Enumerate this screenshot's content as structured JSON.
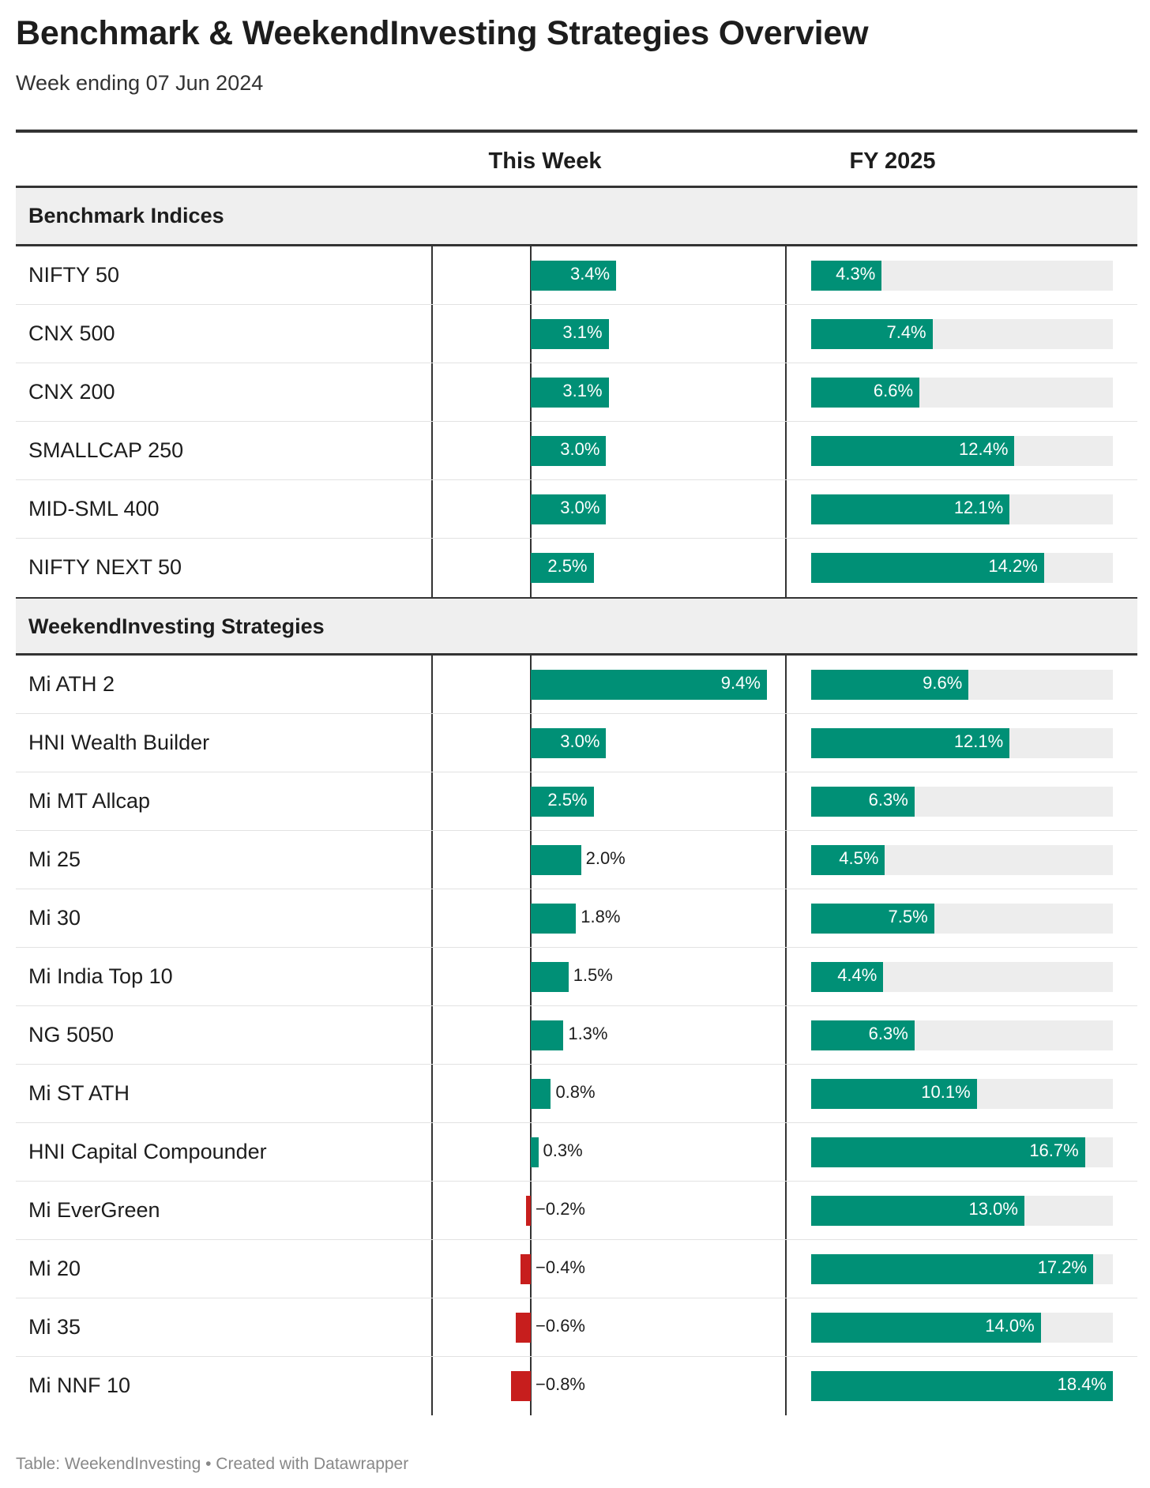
{
  "title": "Benchmark & WeekendInvesting Strategies Overview",
  "subtitle": "Week ending 07 Jun 2024",
  "footer": "Table: WeekendInvesting • Created with Datawrapper",
  "colors": {
    "positive": "#009076",
    "negative": "#c71e1d",
    "track": "#ededed",
    "group_bg": "#efefef"
  },
  "chart_data": {
    "type": "table",
    "columns": [
      "",
      "This Week",
      "FY 2025"
    ],
    "groups": [
      {
        "name": "Benchmark Indices",
        "rows": [
          {
            "name": "NIFTY 50",
            "week": 3.4,
            "week_label": "3.4%",
            "fy": 4.3,
            "fy_label": "4.3%"
          },
          {
            "name": "CNX 500",
            "week": 3.1,
            "week_label": "3.1%",
            "fy": 7.4,
            "fy_label": "7.4%"
          },
          {
            "name": "CNX 200",
            "week": 3.1,
            "week_label": "3.1%",
            "fy": 6.6,
            "fy_label": "6.6%"
          },
          {
            "name": "SMALLCAP 250",
            "week": 3.0,
            "week_label": "3.0%",
            "fy": 12.4,
            "fy_label": "12.4%"
          },
          {
            "name": "MID-SML 400",
            "week": 3.0,
            "week_label": "3.0%",
            "fy": 12.1,
            "fy_label": "12.1%"
          },
          {
            "name": "NIFTY NEXT 50",
            "week": 2.5,
            "week_label": "2.5%",
            "fy": 14.2,
            "fy_label": "14.2%"
          }
        ]
      },
      {
        "name": "WeekendInvesting Strategies",
        "rows": [
          {
            "name": "Mi ATH 2",
            "week": 9.4,
            "week_label": "9.4%",
            "fy": 9.6,
            "fy_label": "9.6%"
          },
          {
            "name": "HNI Wealth Builder",
            "week": 3.0,
            "week_label": "3.0%",
            "fy": 12.1,
            "fy_label": "12.1%"
          },
          {
            "name": "Mi MT Allcap",
            "week": 2.5,
            "week_label": "2.5%",
            "fy": 6.3,
            "fy_label": "6.3%"
          },
          {
            "name": "Mi 25",
            "week": 2.0,
            "week_label": "2.0%",
            "fy": 4.5,
            "fy_label": "4.5%"
          },
          {
            "name": "Mi 30",
            "week": 1.8,
            "week_label": "1.8%",
            "fy": 7.5,
            "fy_label": "7.5%"
          },
          {
            "name": "Mi India Top 10",
            "week": 1.5,
            "week_label": "1.5%",
            "fy": 4.4,
            "fy_label": "4.4%"
          },
          {
            "name": "NG 5050",
            "week": 1.3,
            "week_label": "1.3%",
            "fy": 6.3,
            "fy_label": "6.3%"
          },
          {
            "name": "Mi ST ATH",
            "week": 0.8,
            "week_label": "0.8%",
            "fy": 10.1,
            "fy_label": "10.1%"
          },
          {
            "name": "HNI Capital Compounder",
            "week": 0.3,
            "week_label": "0.3%",
            "fy": 16.7,
            "fy_label": "16.7%"
          },
          {
            "name": "Mi EverGreen",
            "week": -0.2,
            "week_label": "−0.2%",
            "fy": 13.0,
            "fy_label": "13.0%"
          },
          {
            "name": "Mi 20",
            "week": -0.4,
            "week_label": "−0.4%",
            "fy": 17.2,
            "fy_label": "17.2%"
          },
          {
            "name": "Mi 35",
            "week": -0.6,
            "week_label": "−0.6%",
            "fy": 14.0,
            "fy_label": "14.0%"
          },
          {
            "name": "Mi NNF 10",
            "week": -0.8,
            "week_label": "−0.8%",
            "fy": 18.4,
            "fy_label": "18.4%"
          }
        ]
      }
    ]
  }
}
